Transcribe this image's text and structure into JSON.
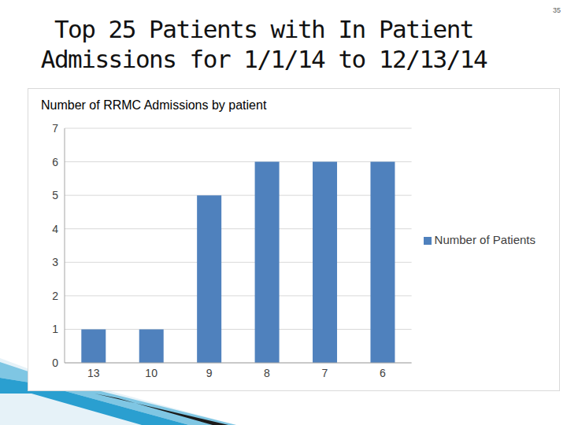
{
  "title": "Top 25 Patients with In Patient Admissions for 1/1/14 to 12/13/14",
  "page_number": "35",
  "chart_data": {
    "type": "bar",
    "title": "Number of RRMC Admissions by patient",
    "categories": [
      "13",
      "10",
      "9",
      "8",
      "7",
      "6"
    ],
    "series": [
      {
        "name": "Number of Patients",
        "color": "#4f81bd",
        "values": [
          1,
          1,
          5,
          6,
          6,
          6
        ]
      }
    ],
    "ylim": [
      0,
      7
    ],
    "yticks": [
      0,
      1,
      2,
      3,
      4,
      5,
      6,
      7
    ],
    "grid": true,
    "legend": "right"
  }
}
